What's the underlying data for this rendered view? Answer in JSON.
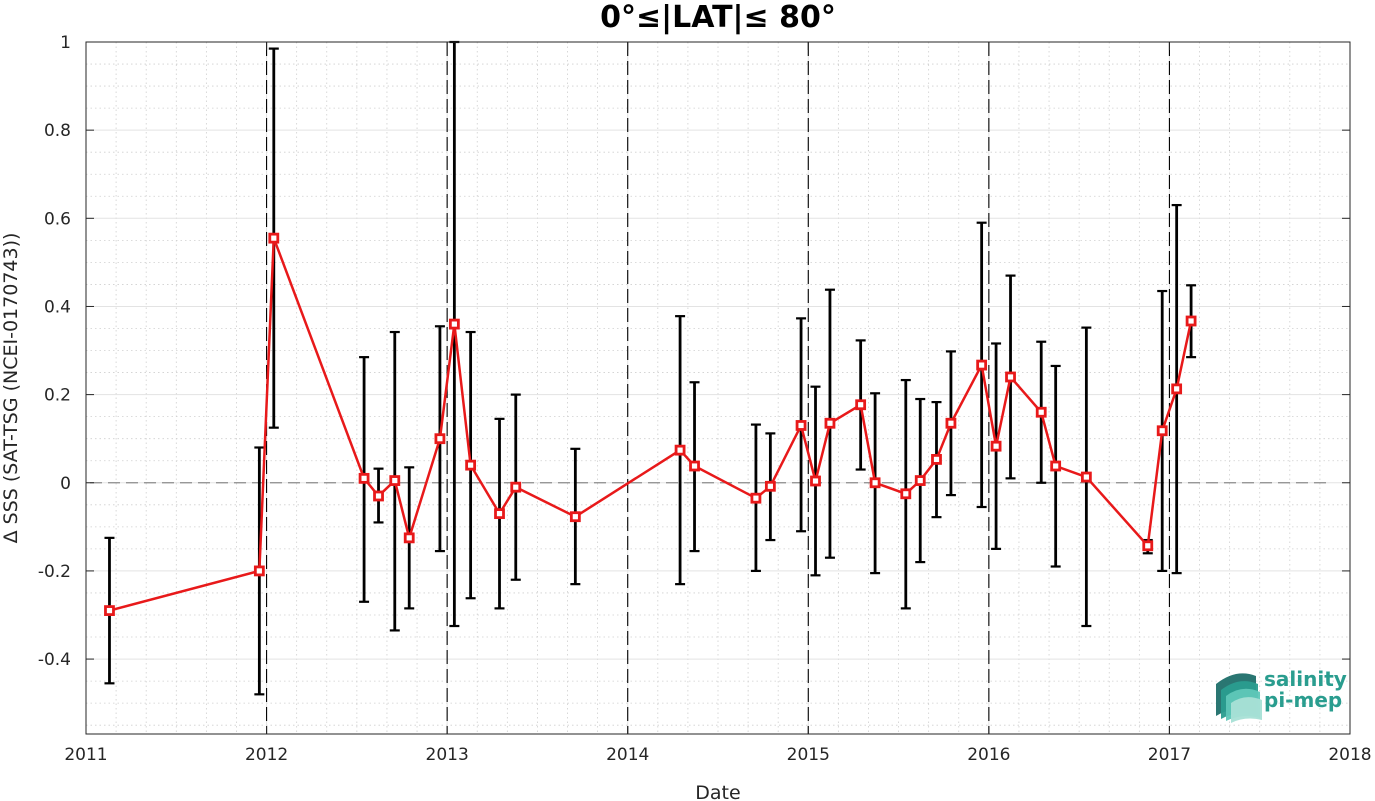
{
  "chart_data": {
    "type": "line",
    "title": "0°≤|LAT|≤ 80°",
    "xlabel": "Date",
    "ylabel": "Δ SSS (SAT-TSG (NCEI-0170743))",
    "xlim": [
      2011,
      2018
    ],
    "ylim": [
      -0.57,
      1.0
    ],
    "x_ticks": [
      "2011",
      "2012",
      "2013",
      "2014",
      "2015",
      "2016",
      "2017",
      "2018"
    ],
    "y_ticks": [
      "1",
      "0.8",
      "0.6",
      "0.4",
      "0.2",
      "0",
      "-0.2",
      "-0.4"
    ],
    "grid": true,
    "minor_grid": true,
    "reference_line": 0,
    "year_boundary_lines": [
      2012,
      2013,
      2014,
      2015,
      2016,
      2017
    ],
    "series_color": "#e8191a",
    "errorbar_color": "#000000",
    "series": [
      {
        "x": [
          2011.13,
          2011.96,
          2012.04,
          2012.54,
          2012.62,
          2012.71,
          2012.79,
          2012.96,
          2013.04,
          2013.13,
          2013.29,
          2013.38,
          2013.71,
          2014.29,
          2014.37,
          2014.71,
          2014.79,
          2014.96,
          2015.04,
          2015.12,
          2015.29,
          2015.37,
          2015.54,
          2015.62,
          2015.71,
          2015.79,
          2015.96,
          2016.04,
          2016.12,
          2016.29,
          2016.37,
          2016.54,
          2016.88,
          2016.96,
          2017.04,
          2017.12
        ],
        "y": [
          -0.29,
          -0.2,
          0.555,
          0.01,
          -0.03,
          0.005,
          -0.125,
          0.1,
          0.36,
          0.04,
          -0.07,
          -0.01,
          -0.077,
          0.074,
          0.038,
          -0.035,
          -0.008,
          0.13,
          0.004,
          0.135,
          0.177,
          0.0,
          -0.025,
          0.005,
          0.053,
          0.135,
          0.267,
          0.083,
          0.24,
          0.16,
          0.038,
          0.013,
          -0.143,
          0.118,
          0.213,
          0.367
        ],
        "err_low": [
          -0.455,
          -0.48,
          0.125,
          -0.27,
          -0.09,
          -0.335,
          -0.285,
          -0.155,
          -0.325,
          -0.262,
          -0.285,
          -0.22,
          -0.23,
          -0.23,
          -0.155,
          -0.2,
          -0.13,
          -0.11,
          -0.21,
          -0.17,
          0.03,
          -0.205,
          -0.285,
          -0.18,
          -0.078,
          -0.028,
          -0.055,
          -0.15,
          0.01,
          0.0,
          -0.19,
          -0.325,
          -0.16,
          -0.2,
          -0.205,
          0.285
        ],
        "err_high": [
          -0.125,
          0.08,
          0.985,
          0.285,
          0.032,
          0.342,
          0.035,
          0.355,
          1.0,
          0.342,
          0.145,
          0.2,
          0.077,
          0.378,
          0.228,
          0.132,
          0.112,
          0.373,
          0.218,
          0.438,
          0.323,
          0.203,
          0.233,
          0.19,
          0.183,
          0.298,
          0.59,
          0.316,
          0.47,
          0.32,
          0.265,
          0.352,
          -0.13,
          0.435,
          0.63,
          0.448
        ]
      }
    ]
  },
  "logo": {
    "line1": "salinity",
    "line2": "pi-mep",
    "colors": [
      "#1f6f6a",
      "#2a9d8f",
      "#5fc7b8",
      "#a8e0d6"
    ]
  }
}
